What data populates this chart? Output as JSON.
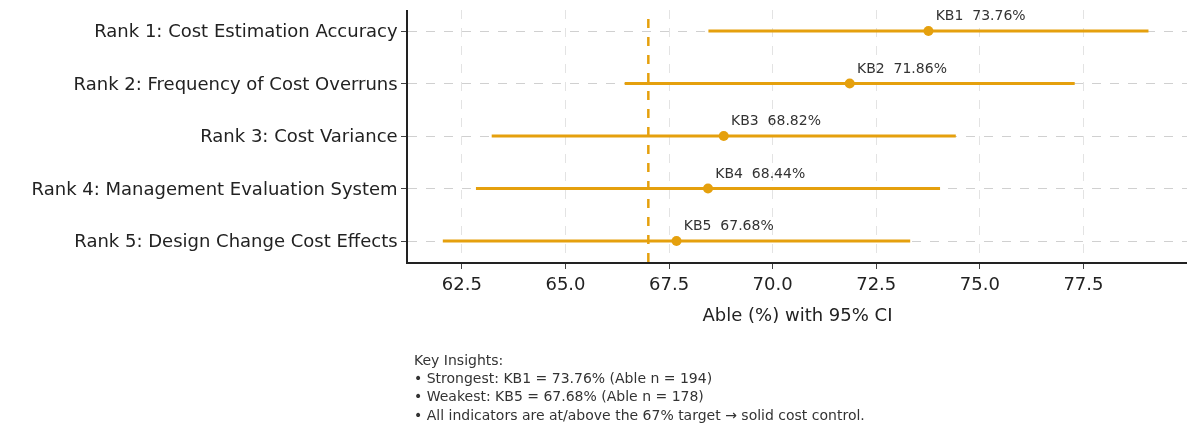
{
  "chart_data": {
    "type": "scatter",
    "xlabel": "Able (%) with 95% CI",
    "categories": [
      "Rank 1: Cost Estimation Accuracy",
      "Rank 2: Frequency of Cost Overruns",
      "Rank 3: Cost Variance",
      "Rank 4: Management Evaluation System",
      "Rank 5: Design Change Cost Effects"
    ],
    "orientation": "horizontal",
    "color": "#e5a00d",
    "marker": "circle",
    "values": [
      73.76,
      71.86,
      68.82,
      68.44,
      67.68
    ],
    "errors": [
      5.31,
      5.43,
      5.6,
      5.6,
      5.64
    ],
    "value_labels": [
      "KB1  73.76%",
      "KB2  71.86%",
      "KB3  68.82%",
      "KB4  68.44%",
      "KB5  67.68%"
    ],
    "xlim": [
      61.2,
      80.0
    ],
    "xticks": [
      {
        "value": 62.5,
        "label": "62.5"
      },
      {
        "value": 65,
        "label": "65.0"
      },
      {
        "value": 67.5,
        "label": "67.5"
      },
      {
        "value": 70,
        "label": "70.0"
      },
      {
        "value": 72.5,
        "label": "72.5"
      },
      {
        "value": 75,
        "label": "75.0"
      },
      {
        "value": 77.5,
        "label": "77.5"
      }
    ],
    "ref_lines": [
      {
        "axis": "x",
        "value": 67,
        "label": null,
        "color": "#e5a00d",
        "line_style": "dashed"
      }
    ],
    "grid": true,
    "annotations": [
      "Key Insights:\n• Strongest: KB1 = 73.76% (Able n = 194)\n• Weakest: KB5 = 67.68% (Able n = 178)\n• All indicators are at/above the 67% target → solid cost control."
    ]
  }
}
